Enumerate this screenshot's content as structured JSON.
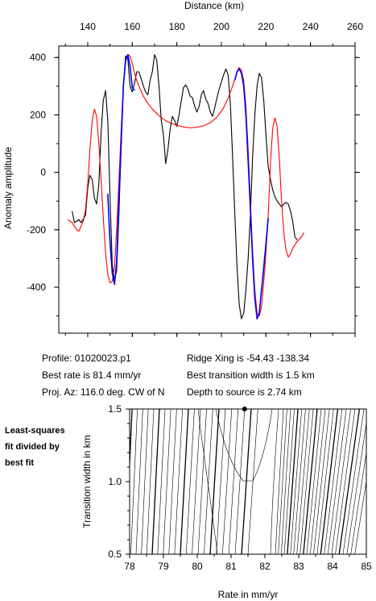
{
  "chart_data": [
    {
      "type": "line",
      "xlabel_top": "Distance (km)",
      "ylabel": "Anomaly amplitude",
      "xlim": [
        127,
        260
      ],
      "ylim": [
        -560,
        440
      ],
      "x_ticks": [
        140,
        160,
        180,
        200,
        220,
        240,
        260
      ],
      "y_ticks": [
        400,
        200,
        0,
        -200,
        -400
      ],
      "series": [
        {
          "color": "#000000",
          "points": [
            [
              133,
              -135
            ],
            [
              134,
              -175
            ],
            [
              136,
              -165
            ],
            [
              137,
              -175
            ],
            [
              139,
              -150
            ],
            [
              140,
              -55
            ],
            [
              141,
              -10
            ],
            [
              142,
              -25
            ],
            [
              143,
              -90
            ],
            [
              144,
              -110
            ],
            [
              145,
              -40
            ],
            [
              146,
              140
            ],
            [
              147,
              250
            ],
            [
              148,
              285
            ],
            [
              149,
              180
            ],
            [
              150,
              -80
            ],
            [
              151,
              -320
            ],
            [
              152,
              -380
            ],
            [
              153,
              -340
            ],
            [
              154,
              -150
            ],
            [
              155,
              100
            ],
            [
              156,
              300
            ],
            [
              157,
              405
            ],
            [
              158,
              395
            ],
            [
              159,
              300
            ],
            [
              160,
              280
            ],
            [
              161,
              310
            ],
            [
              162,
              350
            ],
            [
              163,
              350
            ],
            [
              164,
              325
            ],
            [
              165,
              300
            ],
            [
              166,
              280
            ],
            [
              167,
              270
            ],
            [
              168,
              320
            ],
            [
              169,
              350
            ],
            [
              170,
              410
            ],
            [
              171,
              390
            ],
            [
              172,
              300
            ],
            [
              173,
              180
            ],
            [
              174,
              130
            ],
            [
              175,
              30
            ],
            [
              176,
              80
            ],
            [
              177,
              150
            ],
            [
              178,
              195
            ],
            [
              179,
              180
            ],
            [
              180,
              160
            ],
            [
              181,
              200
            ],
            [
              182,
              250
            ],
            [
              183,
              295
            ],
            [
              184,
              305
            ],
            [
              185,
              290
            ],
            [
              186,
              265
            ],
            [
              187,
              260
            ],
            [
              188,
              230
            ],
            [
              189,
              210
            ],
            [
              190,
              230
            ],
            [
              191,
              270
            ],
            [
              192,
              285
            ],
            [
              193,
              255
            ],
            [
              194,
              240
            ],
            [
              195,
              210
            ],
            [
              196,
              195
            ],
            [
              197,
              225
            ],
            [
              198,
              260
            ],
            [
              199,
              290
            ],
            [
              200,
              315
            ],
            [
              201,
              340
            ],
            [
              202,
              360
            ],
            [
              203,
              340
            ],
            [
              204,
              240
            ],
            [
              205,
              60
            ],
            [
              206,
              -140
            ],
            [
              207,
              -330
            ],
            [
              208,
              -460
            ],
            [
              209,
              -510
            ],
            [
              210,
              -490
            ],
            [
              211,
              -410
            ],
            [
              212,
              -300
            ],
            [
              213,
              -150
            ],
            [
              214,
              50
            ],
            [
              215,
              200
            ],
            [
              216,
              300
            ],
            [
              217,
              345
            ],
            [
              218,
              330
            ],
            [
              219,
              250
            ],
            [
              220,
              130
            ],
            [
              221,
              20
            ],
            [
              222,
              -25
            ],
            [
              223,
              -60
            ],
            [
              224,
              -85
            ],
            [
              225,
              -100
            ],
            [
              226,
              -110
            ],
            [
              227,
              -120
            ],
            [
              228,
              -110
            ],
            [
              229,
              -105
            ],
            [
              230,
              -110
            ],
            [
              231,
              -135
            ],
            [
              232,
              -170
            ],
            [
              233,
              -225
            ],
            [
              234,
              -235
            ]
          ]
        },
        {
          "color": "#ff0000",
          "points": [
            [
              131,
              -165
            ],
            [
              133,
              -175
            ],
            [
              135,
              -200
            ],
            [
              136,
              -205
            ],
            [
              138,
              -170
            ],
            [
              139,
              -130
            ],
            [
              140,
              -40
            ],
            [
              141,
              80
            ],
            [
              142,
              180
            ],
            [
              143,
              220
            ],
            [
              144,
              195
            ],
            [
              145,
              100
            ],
            [
              146,
              -30
            ],
            [
              147,
              -160
            ],
            [
              148,
              -280
            ],
            [
              149,
              -355
            ],
            [
              150,
              -385
            ],
            [
              151,
              -380
            ],
            [
              152,
              -330
            ],
            [
              153,
              -200
            ],
            [
              154,
              -30
            ],
            [
              155,
              150
            ],
            [
              156,
              300
            ],
            [
              157,
              385
            ],
            [
              158,
              410
            ],
            [
              159,
              405
            ],
            [
              160,
              380
            ],
            [
              161,
              345
            ],
            [
              162,
              320
            ],
            [
              163,
              300
            ],
            [
              165,
              265
            ],
            [
              167,
              240
            ],
            [
              169,
              220
            ],
            [
              171,
              205
            ],
            [
              173,
              190
            ],
            [
              175,
              180
            ],
            [
              177,
              172
            ],
            [
              180,
              164
            ],
            [
              183,
              158
            ],
            [
              186,
              155
            ],
            [
              189,
              157
            ],
            [
              192,
              162
            ],
            [
              195,
              173
            ],
            [
              198,
              192
            ],
            [
              201,
              225
            ],
            [
              203,
              258
            ],
            [
              205,
              300
            ],
            [
              206,
              325
            ],
            [
              207,
              352
            ],
            [
              208,
              365
            ],
            [
              209,
              355
            ],
            [
              210,
              320
            ],
            [
              211,
              230
            ],
            [
              212,
              80
            ],
            [
              213,
              -100
            ],
            [
              214,
              -270
            ],
            [
              215,
              -410
            ],
            [
              216,
              -490
            ],
            [
              217,
              -500
            ],
            [
              218,
              -470
            ],
            [
              219,
              -380
            ],
            [
              220,
              -280
            ],
            [
              221,
              -150
            ],
            [
              222,
              30
            ],
            [
              223,
              150
            ],
            [
              224,
              190
            ],
            [
              225,
              160
            ],
            [
              226,
              50
            ],
            [
              227,
              -100
            ],
            [
              228,
              -210
            ],
            [
              229,
              -270
            ],
            [
              230,
              -295
            ],
            [
              231,
              -285
            ],
            [
              232,
              -265
            ],
            [
              234,
              -240
            ],
            [
              236,
              -225
            ],
            [
              237,
              -210
            ]
          ]
        },
        {
          "color": "#0000ff",
          "points": [
            [
              149,
              -75
            ],
            [
              150,
              -240
            ],
            [
              151,
              -350
            ],
            [
              152,
              -390
            ],
            [
              153,
              -310
            ],
            [
              154,
              -100
            ],
            [
              155,
              100
            ],
            [
              156,
              300
            ],
            [
              157,
              390
            ],
            [
              158,
              410
            ],
            [
              159,
              370
            ],
            [
              160,
              295
            ],
            [
              161,
              285
            ]
          ]
        },
        {
          "color": "#0000ff",
          "points": [
            [
              206,
              320
            ],
            [
              207,
              350
            ],
            [
              208,
              360
            ],
            [
              209,
              345
            ],
            [
              210,
              300
            ],
            [
              211,
              200
            ],
            [
              212,
              40
            ],
            [
              213,
              -130
            ],
            [
              214,
              -300
            ],
            [
              215,
              -440
            ],
            [
              216,
              -510
            ],
            [
              217,
              -490
            ],
            [
              218,
              -410
            ],
            [
              219,
              -330
            ],
            [
              220,
              -250
            ],
            [
              221,
              -160
            ]
          ]
        }
      ]
    },
    {
      "type": "contour",
      "xlabel": "Rate in mm/yr",
      "ylabel": "Transition width in km",
      "xlim": [
        78,
        85
      ],
      "ylim": [
        0.5,
        1.5
      ],
      "x_ticks": [
        "78",
        "79",
        "80",
        "81",
        "82",
        "83",
        "84",
        "85"
      ],
      "y_ticks": [
        "1.5",
        "1.0",
        "0.5"
      ],
      "best_fit": [
        81.4,
        1.5
      ]
    }
  ],
  "info": {
    "profile": "Profile: 01020023.p1",
    "best_rate": "Best rate is 81.4 mm/yr",
    "proj_az": "Proj. Az: 116.0 deg. CW of N",
    "ridge_xing": "Ridge Xing is -54.43 -138.34",
    "best_transition": "Best transition width is 1.5 km",
    "depth": "Depth to source is   2.74 km"
  },
  "side_label": [
    "Least-squares",
    "fit divided by",
    "best fit"
  ]
}
